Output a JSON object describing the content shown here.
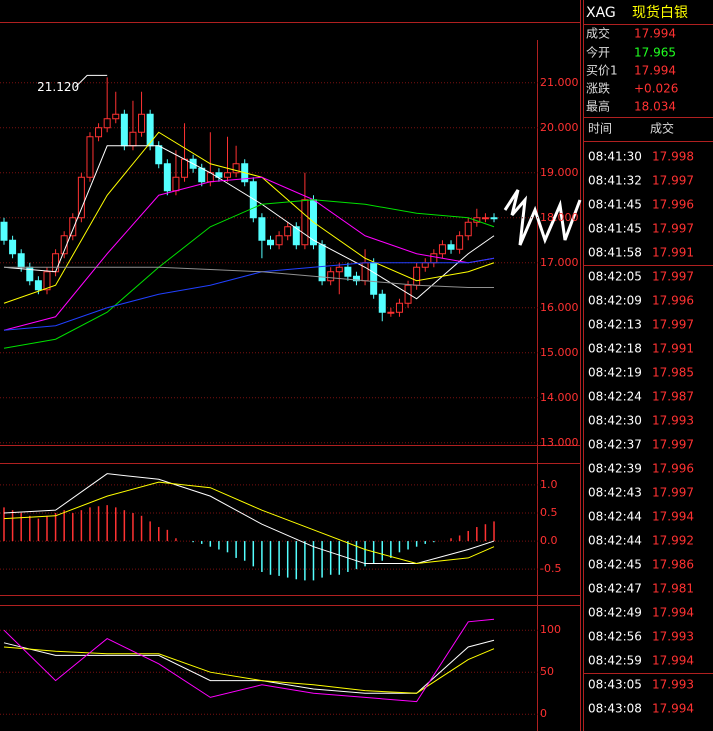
{
  "chart_data": [
    {
      "type": "candlestick",
      "annotation": "21.120",
      "xlim": [
        0,
        62
      ],
      "ylim": [
        12.95,
        21.95
      ],
      "yticks": [
        {
          "value": 21,
          "label": "21.000"
        },
        {
          "value": 20,
          "label": "20.000"
        },
        {
          "value": 19,
          "label": "19.000"
        },
        {
          "value": 18,
          "label": "18.000"
        },
        {
          "value": 17,
          "label": "17.000"
        },
        {
          "value": 16,
          "label": "16.000"
        },
        {
          "value": 15,
          "label": "15.000"
        },
        {
          "value": 14,
          "label": "14.000"
        },
        {
          "value": 13,
          "label": "13.000"
        }
      ],
      "up_color": "#ff3232",
      "down_color": "#54ffff",
      "open": [
        17.9,
        17.5,
        17.2,
        16.9,
        16.6,
        16.4,
        16.8,
        17.2,
        17.6,
        18.0,
        18.9,
        19.8,
        20.0,
        20.2,
        20.3,
        19.6,
        19.9,
        20.3,
        19.6,
        19.2,
        18.6,
        18.9,
        19.3,
        19.1,
        18.8,
        19.0,
        18.9,
        19.0,
        19.2,
        18.8,
        18.0,
        17.5,
        17.4,
        17.6,
        17.8,
        17.4,
        18.4,
        17.4,
        16.6,
        16.8,
        16.9,
        16.7,
        16.6,
        17.0,
        16.3,
        15.9,
        15.9,
        16.1,
        16.5,
        16.9,
        17.0,
        17.2,
        17.4,
        17.3,
        17.6,
        17.9,
        18.0,
        18.0
      ],
      "high": [
        18.0,
        17.6,
        17.3,
        17.0,
        16.7,
        16.9,
        17.3,
        17.7,
        18.1,
        19.0,
        19.9,
        20.1,
        21.12,
        20.8,
        20.4,
        20.6,
        20.8,
        20.4,
        19.7,
        19.3,
        19.5,
        20.1,
        19.4,
        19.2,
        19.9,
        19.1,
        19.8,
        19.6,
        19.3,
        18.9,
        18.1,
        17.6,
        17.7,
        17.9,
        17.9,
        19.0,
        18.5,
        17.5,
        16.9,
        17.0,
        17.0,
        16.8,
        17.3,
        17.1,
        16.4,
        16.0,
        16.2,
        16.6,
        17.0,
        17.1,
        17.3,
        17.5,
        17.5,
        17.7,
        18.0,
        18.2,
        18.1,
        18.1
      ],
      "low": [
        17.4,
        17.1,
        16.8,
        16.5,
        16.3,
        16.3,
        16.7,
        17.1,
        17.5,
        17.9,
        18.8,
        19.7,
        19.9,
        20.1,
        19.5,
        19.5,
        19.8,
        19.5,
        19.1,
        18.5,
        18.5,
        18.8,
        19.0,
        18.7,
        18.7,
        18.8,
        18.8,
        18.9,
        18.7,
        17.9,
        17.1,
        17.3,
        17.3,
        17.5,
        17.3,
        17.3,
        17.3,
        16.5,
        16.5,
        16.3,
        16.6,
        16.5,
        16.5,
        16.2,
        15.7,
        15.8,
        15.8,
        16.0,
        16.4,
        16.8,
        16.9,
        17.1,
        17.2,
        17.2,
        17.5,
        17.8,
        17.9,
        17.9
      ],
      "close": [
        17.5,
        17.2,
        16.9,
        16.6,
        16.4,
        16.8,
        17.2,
        17.6,
        18.0,
        18.9,
        19.8,
        20.0,
        20.2,
        20.3,
        19.6,
        19.9,
        20.3,
        19.6,
        19.2,
        18.6,
        18.9,
        19.3,
        19.1,
        18.8,
        19.0,
        18.9,
        19.0,
        19.2,
        18.8,
        18.0,
        17.5,
        17.4,
        17.6,
        17.8,
        17.4,
        18.4,
        17.4,
        16.6,
        16.8,
        16.9,
        16.7,
        16.6,
        17.0,
        16.3,
        15.9,
        15.9,
        16.1,
        16.5,
        16.9,
        17.0,
        17.2,
        17.4,
        17.3,
        17.6,
        17.9,
        18.0,
        18.0,
        17.99
      ],
      "series": [
        {
          "color": "#ffffff",
          "x": [
            0,
            6,
            12,
            18,
            24,
            30,
            36,
            42,
            48,
            54,
            57
          ],
          "values": [
            16.9,
            16.8,
            19.6,
            19.6,
            19.0,
            18.3,
            17.5,
            16.9,
            16.2,
            17.2,
            17.6
          ]
        },
        {
          "color": "#ffff00",
          "x": [
            0,
            6,
            12,
            18,
            24,
            30,
            36,
            42,
            48,
            54,
            57
          ],
          "values": [
            16.1,
            16.5,
            18.5,
            19.9,
            19.2,
            18.9,
            17.9,
            17.1,
            16.6,
            16.8,
            17.0
          ]
        },
        {
          "color": "#ff00ff",
          "x": [
            0,
            6,
            12,
            18,
            24,
            30,
            36,
            42,
            48,
            54,
            57
          ],
          "values": [
            15.5,
            15.8,
            17.2,
            18.5,
            18.8,
            18.9,
            18.4,
            17.6,
            17.2,
            17.0,
            17.1
          ]
        },
        {
          "color": "#00e000",
          "x": [
            0,
            6,
            12,
            18,
            24,
            30,
            36,
            42,
            48,
            54,
            57
          ],
          "values": [
            15.1,
            15.3,
            15.9,
            16.9,
            17.8,
            18.3,
            18.4,
            18.3,
            18.1,
            18.0,
            17.8
          ]
        },
        {
          "color": "#2040ff",
          "x": [
            0,
            6,
            12,
            18,
            24,
            30,
            36,
            42,
            48,
            54,
            57
          ],
          "values": [
            15.5,
            15.6,
            16.0,
            16.3,
            16.5,
            16.8,
            16.9,
            17.0,
            17.0,
            17.0,
            17.1
          ]
        },
        {
          "color": "#909090",
          "x": [
            0,
            6,
            12,
            18,
            24,
            30,
            36,
            42,
            48,
            54,
            57
          ],
          "values": [
            16.9,
            16.9,
            16.9,
            16.9,
            16.85,
            16.8,
            16.7,
            16.6,
            16.5,
            16.45,
            16.45
          ]
        }
      ]
    },
    {
      "type": "macd",
      "xlim": [
        0,
        62
      ],
      "ylim": [
        -0.96,
        1.39
      ],
      "yticks": [
        {
          "value": 1,
          "label": "1.0"
        },
        0.5,
        {
          "value": 0,
          "label": "0.0"
        },
        -0.5
      ],
      "up_color": "#ff3232",
      "down_color": "#54ffff",
      "values": [
        0.6,
        0.55,
        0.5,
        0.45,
        0.4,
        0.45,
        0.5,
        0.55,
        0.5,
        0.55,
        0.6,
        0.62,
        0.64,
        0.6,
        0.55,
        0.5,
        0.45,
        0.35,
        0.25,
        0.2,
        0.05,
        0,
        -0.02,
        -0.05,
        -0.1,
        -0.15,
        -0.2,
        -0.3,
        -0.35,
        -0.45,
        -0.55,
        -0.6,
        -0.62,
        -0.65,
        -0.68,
        -0.7,
        -0.7,
        -0.65,
        -0.6,
        -0.6,
        -0.55,
        -0.5,
        -0.45,
        -0.4,
        -0.35,
        -0.3,
        -0.2,
        -0.15,
        -0.1,
        -0.05,
        -0.02,
        0,
        0.05,
        0.1,
        0.18,
        0.25,
        0.3,
        0.35
      ],
      "series": [
        {
          "color": "#ffffff",
          "x": [
            0,
            6,
            12,
            18,
            24,
            30,
            36,
            42,
            48,
            54,
            57
          ],
          "values": [
            0.5,
            0.55,
            1.2,
            1.1,
            0.8,
            0.3,
            -0.1,
            -0.4,
            -0.4,
            -0.15,
            0.0
          ]
        },
        {
          "color": "#ffff00",
          "x": [
            0,
            6,
            12,
            18,
            24,
            30,
            36,
            42,
            48,
            54,
            57
          ],
          "values": [
            0.4,
            0.45,
            0.8,
            1.05,
            0.95,
            0.55,
            0.2,
            -0.15,
            -0.4,
            -0.3,
            -0.1
          ]
        }
      ]
    },
    {
      "type": "line",
      "xlim": [
        0,
        62
      ],
      "ylim": [
        -20,
        130
      ],
      "yticks": [
        100,
        50,
        0
      ],
      "series": [
        {
          "color": "#ffffff",
          "x": [
            0,
            6,
            12,
            18,
            24,
            30,
            36,
            42,
            48,
            54,
            57
          ],
          "values": [
            85,
            70,
            70,
            70,
            40,
            40,
            30,
            25,
            25,
            80,
            88
          ]
        },
        {
          "color": "#ffff00",
          "x": [
            0,
            6,
            12,
            18,
            24,
            30,
            36,
            42,
            48,
            54,
            57
          ],
          "values": [
            80,
            75,
            72,
            72,
            50,
            40,
            35,
            28,
            25,
            65,
            78
          ]
        },
        {
          "color": "#ff00ff",
          "x": [
            0,
            6,
            12,
            18,
            24,
            30,
            36,
            42,
            48,
            54,
            57
          ],
          "values": [
            100,
            40,
            90,
            60,
            20,
            35,
            25,
            20,
            15,
            110,
            113
          ]
        }
      ]
    }
  ],
  "header": {
    "symbol": "XAG",
    "name": "现货白银"
  },
  "quote": [
    {
      "label": "成交",
      "value": "17.994"
    },
    {
      "label": "今开",
      "value": "17.965"
    },
    {
      "label": "买价1",
      "value": "17.994"
    },
    {
      "label": "涨跌",
      "value": "+0.026"
    },
    {
      "label": "最高",
      "value": "18.034"
    }
  ],
  "trades": {
    "columns": [
      "时间",
      "成交"
    ],
    "rows": [
      [
        "08:41:30",
        "17.998"
      ],
      [
        "08:41:32",
        "17.997"
      ],
      [
        "08:41:45",
        "17.996"
      ],
      [
        "08:41:45",
        "17.997"
      ],
      [
        "08:41:58",
        "17.991"
      ],
      [
        "08:42:05",
        "17.997"
      ],
      [
        "08:42:09",
        "17.996"
      ],
      [
        "08:42:13",
        "17.997"
      ],
      [
        "08:42:18",
        "17.991"
      ],
      [
        "08:42:19",
        "17.985"
      ],
      [
        "08:42:24",
        "17.987"
      ],
      [
        "08:42:30",
        "17.993"
      ],
      [
        "08:42:37",
        "17.997"
      ],
      [
        "08:42:39",
        "17.996"
      ],
      [
        "08:42:43",
        "17.997"
      ],
      [
        "08:42:44",
        "17.994"
      ],
      [
        "08:42:44",
        "17.992"
      ],
      [
        "08:42:45",
        "17.986"
      ],
      [
        "08:42:47",
        "17.981"
      ],
      [
        "08:42:49",
        "17.994"
      ],
      [
        "08:42:56",
        "17.993"
      ],
      [
        "08:42:59",
        "17.994"
      ],
      [
        "08:43:05",
        "17.993"
      ],
      [
        "08:43:08",
        "17.994"
      ]
    ]
  }
}
